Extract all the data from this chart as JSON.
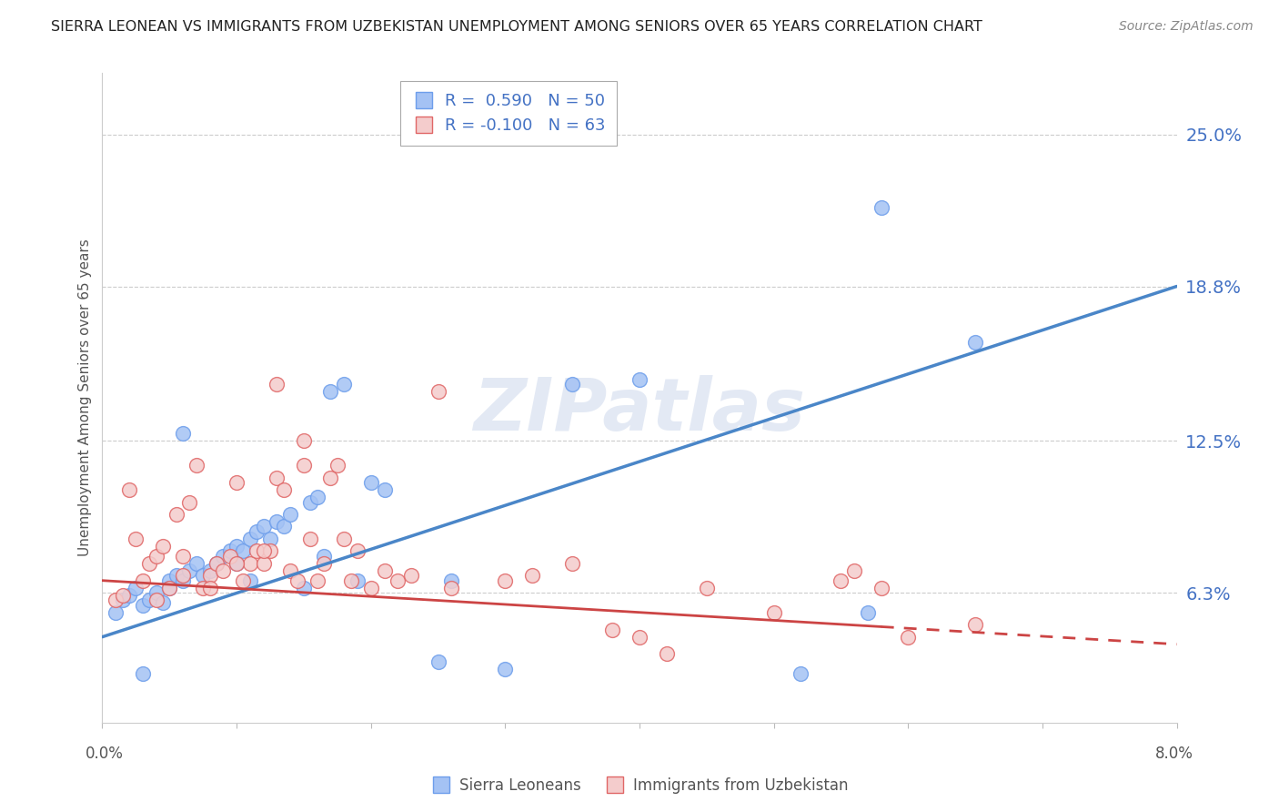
{
  "title": "SIERRA LEONEAN VS IMMIGRANTS FROM UZBEKISTAN UNEMPLOYMENT AMONG SENIORS OVER 65 YEARS CORRELATION CHART",
  "source": "Source: ZipAtlas.com",
  "ylabel": "Unemployment Among Seniors over 65 years",
  "watermark_text": "ZIPatlas",
  "right_ytick_vals": [
    6.3,
    12.5,
    18.8,
    25.0
  ],
  "right_ytick_labels": [
    "6.3%",
    "12.5%",
    "18.8%",
    "25.0%"
  ],
  "xmin": 0.0,
  "xmax": 8.0,
  "ymin": 1.0,
  "ymax": 27.5,
  "blue_R": 0.59,
  "blue_N": 50,
  "pink_R": -0.1,
  "pink_N": 63,
  "blue_fill_color": "#a4c2f4",
  "pink_fill_color": "#f4cccc",
  "blue_edge_color": "#6d9eeb",
  "pink_edge_color": "#e06666",
  "blue_line_color": "#4a86c8",
  "pink_line_color": "#cc4444",
  "text_color_blue": "#4472c4",
  "legend_label_blue": "Sierra Leoneans",
  "legend_label_pink": "Immigrants from Uzbekistan",
  "blue_scatter_x": [
    0.1,
    0.15,
    0.2,
    0.25,
    0.3,
    0.35,
    0.4,
    0.45,
    0.5,
    0.5,
    0.55,
    0.6,
    0.65,
    0.7,
    0.75,
    0.8,
    0.85,
    0.9,
    0.95,
    1.0,
    1.0,
    1.05,
    1.1,
    1.1,
    1.15,
    1.2,
    1.25,
    1.3,
    1.35,
    1.4,
    1.5,
    1.55,
    1.6,
    1.65,
    1.7,
    1.8,
    1.9,
    2.0,
    2.1,
    2.5,
    2.6,
    3.0,
    3.5,
    4.0,
    5.2,
    5.7,
    5.8,
    6.5,
    0.3,
    0.6
  ],
  "blue_scatter_y": [
    5.5,
    6.0,
    6.2,
    6.5,
    5.8,
    6.0,
    6.3,
    5.9,
    6.8,
    6.5,
    7.0,
    6.8,
    7.2,
    7.5,
    7.0,
    7.2,
    7.5,
    7.8,
    8.0,
    7.5,
    8.2,
    8.0,
    8.5,
    6.8,
    8.8,
    9.0,
    8.5,
    9.2,
    9.0,
    9.5,
    6.5,
    10.0,
    10.2,
    7.8,
    14.5,
    14.8,
    6.8,
    10.8,
    10.5,
    3.5,
    6.8,
    3.2,
    14.8,
    15.0,
    3.0,
    5.5,
    22.0,
    16.5,
    3.0,
    12.8
  ],
  "pink_scatter_x": [
    0.1,
    0.15,
    0.2,
    0.25,
    0.3,
    0.35,
    0.4,
    0.45,
    0.5,
    0.55,
    0.6,
    0.65,
    0.7,
    0.75,
    0.8,
    0.85,
    0.9,
    0.95,
    1.0,
    1.05,
    1.1,
    1.15,
    1.2,
    1.25,
    1.3,
    1.35,
    1.4,
    1.45,
    1.5,
    1.55,
    1.6,
    1.65,
    1.7,
    1.75,
    1.8,
    1.85,
    1.9,
    2.0,
    2.1,
    2.2,
    2.3,
    2.5,
    2.6,
    3.0,
    3.2,
    3.5,
    4.0,
    4.2,
    4.5,
    5.0,
    5.5,
    5.6,
    5.8,
    6.0,
    6.5,
    0.4,
    0.6,
    0.8,
    1.0,
    1.2,
    1.3,
    1.5,
    3.8
  ],
  "pink_scatter_y": [
    6.0,
    6.2,
    10.5,
    8.5,
    6.8,
    7.5,
    7.8,
    8.2,
    6.5,
    9.5,
    7.8,
    10.0,
    11.5,
    6.5,
    7.0,
    7.5,
    7.2,
    7.8,
    10.8,
    6.8,
    7.5,
    8.0,
    7.5,
    8.0,
    11.0,
    10.5,
    7.2,
    6.8,
    12.5,
    8.5,
    6.8,
    7.5,
    11.0,
    11.5,
    8.5,
    6.8,
    8.0,
    6.5,
    7.2,
    6.8,
    7.0,
    14.5,
    6.5,
    6.8,
    7.0,
    7.5,
    4.5,
    3.8,
    6.5,
    5.5,
    6.8,
    7.2,
    6.5,
    4.5,
    5.0,
    6.0,
    7.0,
    6.5,
    7.5,
    8.0,
    14.8,
    11.5,
    4.8
  ],
  "blue_line_x": [
    0.0,
    8.0
  ],
  "blue_line_y": [
    4.5,
    18.8
  ],
  "pink_line_x": [
    0.0,
    8.0
  ],
  "pink_line_y": [
    6.8,
    4.2
  ],
  "pink_line_solid_end": 5.8,
  "pink_line_dash_start": 5.8
}
